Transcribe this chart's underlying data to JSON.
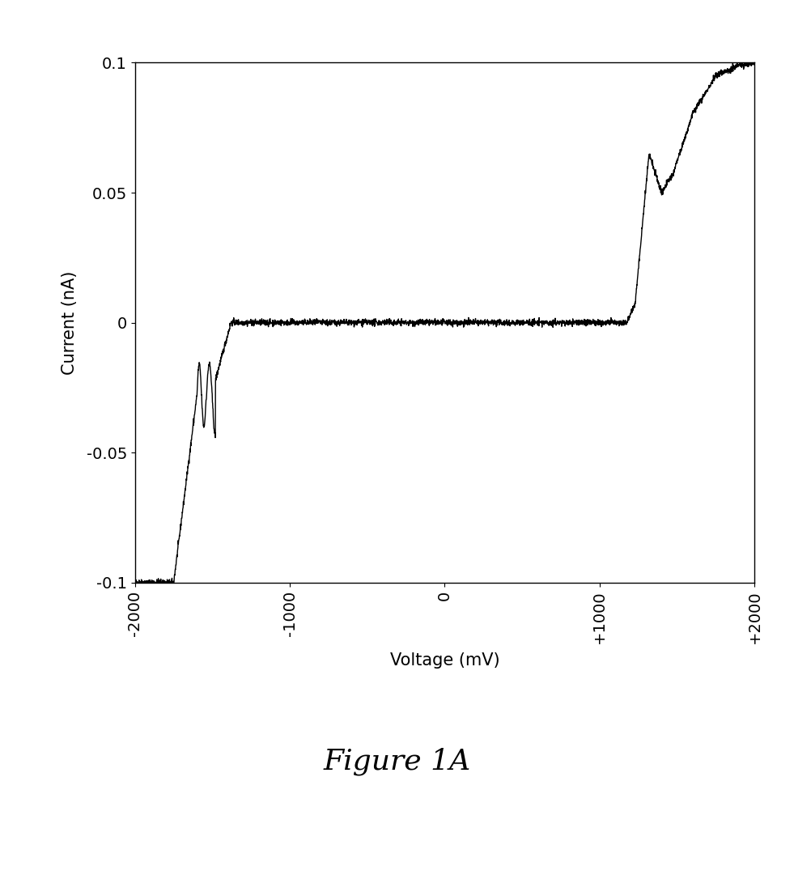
{
  "title": "Figure 1A",
  "xlabel": "Voltage (mV)",
  "ylabel": "Current (nA)",
  "xlim": [
    -2000,
    2000
  ],
  "ylim": [
    -0.1,
    0.1
  ],
  "xticks": [
    -2000,
    -1000,
    0,
    1000,
    2000
  ],
  "yticks": [
    -0.1,
    -0.05,
    0,
    0.05,
    0.1
  ],
  "line_color": "#000000",
  "background_color": "#ffffff",
  "title_fontsize": 26,
  "axis_fontsize": 15,
  "tick_fontsize": 14
}
